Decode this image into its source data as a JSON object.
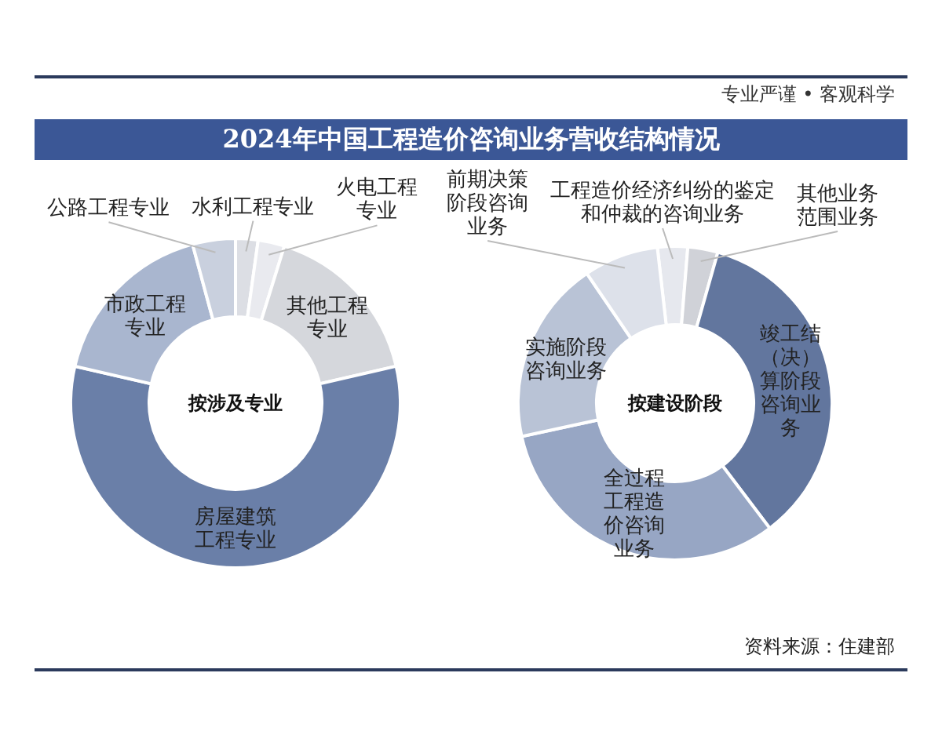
{
  "chart_data": [
    {
      "type": "other",
      "title": "2024年中国工程造价咨询业务营收结构情况",
      "subtitle": "专业严谨 • 客观科学",
      "annotations": [
        "资料来源：住建部"
      ]
    },
    {
      "type": "donut",
      "title": "按涉及专业",
      "categories": [
        "水利工程专业",
        "火电工程专业",
        "其他工程专业",
        "房屋建筑工程专业",
        "市政工程专业",
        "公路工程专业"
      ],
      "values": [
        2.2,
        2.6,
        16.6,
        57.2,
        17.2,
        4.2
      ],
      "colors": [
        "#dcdee4",
        "#e9eaef",
        "#d5d7dc",
        "#6a7fa8",
        "#a9b6cf",
        "#c9d0de"
      ]
    },
    {
      "type": "donut",
      "title": "按建设阶段",
      "categories": [
        "工程造价经济纠纷的鉴定和仲裁的咨询业务",
        "其他业务范围业务",
        "竣工结（决）算阶段咨询业务",
        "全过程工程造价咨询业务",
        "实施阶段咨询业务",
        "前期决策阶段咨询业务"
      ],
      "values": [
        3.1,
        3.1,
        35.3,
        31.9,
        18.9,
        7.7
      ],
      "colors": [
        "#e6e8ee",
        "#d0d2d8",
        "#62769e",
        "#97a6c4",
        "#b9c3d6",
        "#dde1ea"
      ]
    }
  ]
}
